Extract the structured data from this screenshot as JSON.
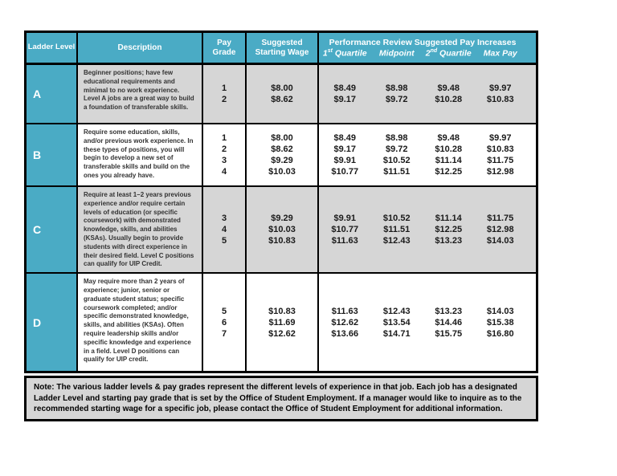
{
  "colors": {
    "header_teal": "#4AABC5",
    "band_gray": "#D6D6D6",
    "band_white": "#FFFFFF",
    "border_black": "#000000",
    "header_text": "#FFFFFF"
  },
  "table": {
    "header": {
      "ladder_level": "Ladder Level",
      "description": "Description",
      "pay_grade": "Pay Grade",
      "starting_wage": "Suggested Starting Wage",
      "perf_title": "Performance Review Suggested Pay Increases",
      "perf_sub": [
        {
          "base": "1",
          "sup": "st",
          "rest": " Quartile"
        },
        {
          "base": "Midpoint",
          "sup": "",
          "rest": ""
        },
        {
          "base": "2",
          "sup": "nd",
          "rest": " Quartile"
        },
        {
          "base": "Max Pay",
          "sup": "",
          "rest": ""
        }
      ]
    },
    "rows": [
      {
        "level": "A",
        "description": "Beginner positions; have few educational requirements and minimal to no work experience. Level A jobs are a great way to build a foundation of transferable skills.",
        "grades": [
          "1",
          "2"
        ],
        "wages": [
          "$8.00",
          "$8.62"
        ],
        "quartile1": [
          "$8.49",
          "$9.17"
        ],
        "midpoint": [
          "$8.98",
          "$9.72"
        ],
        "quartile2": [
          "$9.48",
          "$10.28"
        ],
        "max_pay": [
          "$9.97",
          "$10.83"
        ]
      },
      {
        "level": "B",
        "description": "Require some education, skills, and/or previous work experience. In these types of positions, you will begin to develop a new set of transferable skills and build on the ones you already have.",
        "grades": [
          "1",
          "2",
          "3",
          "4"
        ],
        "wages": [
          "$8.00",
          "$8.62",
          "$9.29",
          "$10.03"
        ],
        "quartile1": [
          "$8.49",
          "$9.17",
          "$9.91",
          "$10.77"
        ],
        "midpoint": [
          "$8.98",
          "$9.72",
          "$10.52",
          "$11.51"
        ],
        "quartile2": [
          "$9.48",
          "$10.28",
          "$11.14",
          "$12.25"
        ],
        "max_pay": [
          "$9.97",
          "$10.83",
          "$11.75",
          "$12.98"
        ]
      },
      {
        "level": "C",
        "description": "Require at least 1–2 years previous experience and/or require certain levels of education (or specific coursework) with demonstrated knowledge, skills, and abilities (KSAs). Usually begin to provide students with direct experience in their desired field. Level C positions can qualify for UIP Credit.",
        "grades": [
          "3",
          "4",
          "5"
        ],
        "wages": [
          "$9.29",
          "$10.03",
          "$10.83"
        ],
        "quartile1": [
          "$9.91",
          "$10.77",
          "$11.63"
        ],
        "midpoint": [
          "$10.52",
          "$11.51",
          "$12.43"
        ],
        "quartile2": [
          "$11.14",
          "$12.25",
          "$13.23"
        ],
        "max_pay": [
          "$11.75",
          "$12.98",
          "$14.03"
        ]
      },
      {
        "level": "D",
        "description": "May require more than 2 years of experience; junior, senior or graduate student status; specific coursework completed; and/or specific demonstrated knowledge, skills, and abilities (KSAs). Often require leadership skills and/or specific knowledge and experience in a field. Level D positions can qualify for UIP credit.",
        "grades": [
          "5",
          "6",
          "7"
        ],
        "wages": [
          "$10.83",
          "$11.69",
          "$12.62"
        ],
        "quartile1": [
          "$11.63",
          "$12.62",
          "$13.66"
        ],
        "midpoint": [
          "$12.43",
          "$13.54",
          "$14.71"
        ],
        "quartile2": [
          "$13.23",
          "$14.46",
          "$15.75"
        ],
        "max_pay": [
          "$14.03",
          "$15.38",
          "$16.80"
        ]
      }
    ]
  },
  "note": "Note:  The various ladder levels & pay grades represent the different levels of experience in that job.  Each job has a designated Ladder Level and starting pay grade that is set by the Office of Student Employment.  If a manager would like to inquire as to the recommended starting wage for a specific job, please contact the Office of Student Employment for additional information."
}
